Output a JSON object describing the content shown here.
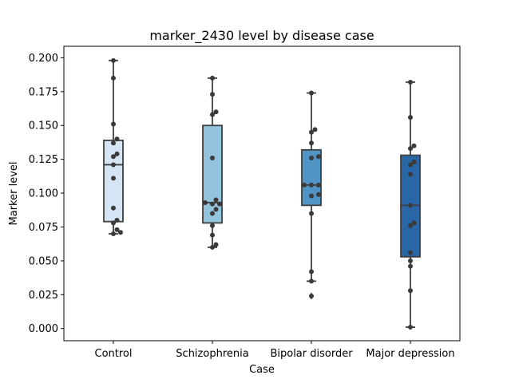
{
  "chart_data": {
    "type": "box",
    "title": "marker_2430 level by disease case",
    "xlabel": "Case",
    "ylabel": "Marker level",
    "ylim": [
      -0.009,
      0.2085
    ],
    "yticks": [
      "0.000",
      "0.025",
      "0.050",
      "0.075",
      "0.100",
      "0.125",
      "0.150",
      "0.175",
      "0.200"
    ],
    "grid": false,
    "categories": [
      "Control",
      "Schizophrenia",
      "Bipolar disorder",
      "Major depression"
    ],
    "colors": [
      "#d6e5f3",
      "#94c3dd",
      "#5093c5",
      "#2866a6"
    ],
    "boxes": [
      {
        "q1": 0.079,
        "median": 0.121,
        "q3": 0.139,
        "whisker_low": 0.07,
        "whisker_high": 0.198,
        "outliers": []
      },
      {
        "q1": 0.078,
        "median": 0.093,
        "q3": 0.15,
        "whisker_low": 0.06,
        "whisker_high": 0.185,
        "outliers": []
      },
      {
        "q1": 0.091,
        "median": 0.106,
        "q3": 0.132,
        "whisker_low": 0.035,
        "whisker_high": 0.174,
        "outliers": [
          0.024
        ]
      },
      {
        "q1": 0.053,
        "median": 0.091,
        "q3": 0.128,
        "whisker_low": 0.001,
        "whisker_high": 0.182,
        "outliers": []
      }
    ],
    "points": [
      [
        0.198,
        0.185,
        0.151,
        0.14,
        0.137,
        0.129,
        0.127,
        0.121,
        0.111,
        0.089,
        0.08,
        0.078,
        0.073,
        0.071,
        0.07
      ],
      [
        0.185,
        0.173,
        0.16,
        0.158,
        0.126,
        0.095,
        0.093,
        0.092,
        0.092,
        0.088,
        0.085,
        0.076,
        0.069,
        0.062,
        0.06
      ],
      [
        0.174,
        0.147,
        0.145,
        0.137,
        0.127,
        0.126,
        0.106,
        0.106,
        0.106,
        0.099,
        0.098,
        0.085,
        0.042,
        0.035,
        0.024
      ],
      [
        0.182,
        0.156,
        0.135,
        0.133,
        0.123,
        0.121,
        0.114,
        0.091,
        0.078,
        0.076,
        0.056,
        0.05,
        0.046,
        0.028,
        0.001
      ]
    ]
  }
}
